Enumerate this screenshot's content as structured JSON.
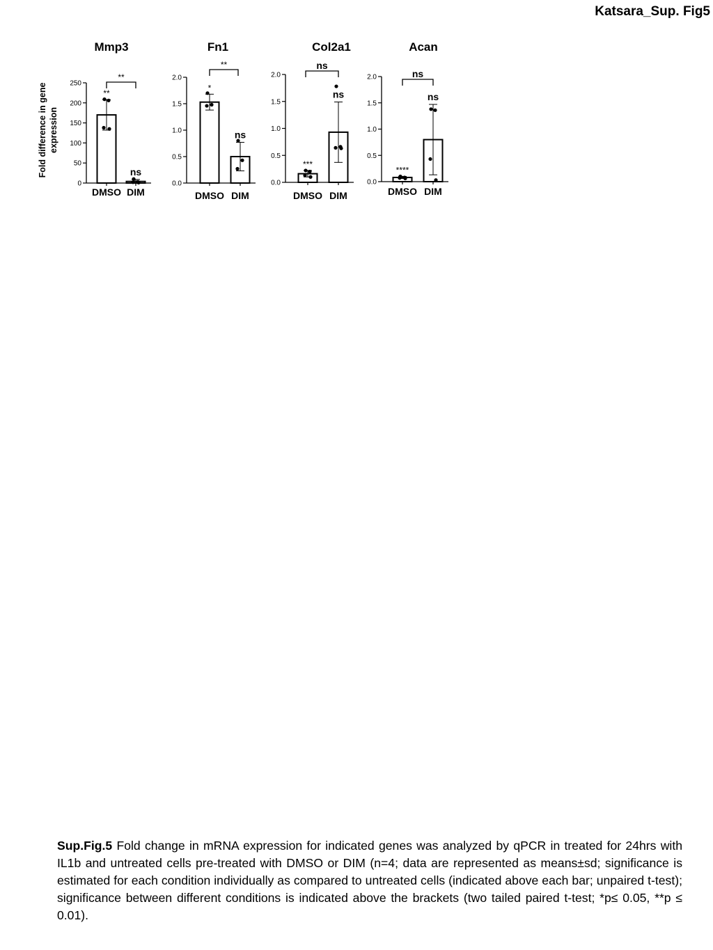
{
  "header": {
    "label": "Katsara_Sup. Fig5"
  },
  "figure": {
    "shared_ylabel_line1": "Fold difference in gene",
    "shared_ylabel_line2": "expression"
  },
  "chart_data": [
    {
      "type": "bar",
      "title": "Mmp3",
      "categories": [
        "DMSO",
        "DIM"
      ],
      "ylim": [
        0,
        250
      ],
      "yticks": [
        "0",
        "50",
        "100",
        "150",
        "200",
        "250"
      ],
      "values": [
        170,
        4
      ],
      "sd": [
        38,
        5
      ],
      "points": [
        [
          209,
          206,
          138,
          135
        ],
        [
          10,
          3,
          2,
          1
        ]
      ],
      "bar_annotations": [
        "**",
        "ns"
      ],
      "bracket_label": "**"
    },
    {
      "type": "bar",
      "title": "Fn1",
      "categories": [
        "DMSO",
        "DIM"
      ],
      "ylim": [
        0,
        2.0
      ],
      "yticks": [
        "0.0",
        "0.5",
        "1.0",
        "1.5",
        "2.0"
      ],
      "values": [
        1.53,
        0.5
      ],
      "sd": [
        0.15,
        0.27
      ],
      "points": [
        [
          1.7,
          1.48,
          1.46
        ],
        [
          0.8,
          0.43,
          0.27
        ]
      ],
      "bar_annotations": [
        "*",
        "ns"
      ],
      "bracket_label": "**"
    },
    {
      "type": "bar",
      "title": "Col2a1",
      "categories": [
        "DMSO",
        "DIM"
      ],
      "ylim": [
        0,
        2.0
      ],
      "yticks": [
        "0.0",
        "0.5",
        "1.0",
        "1.5",
        "2.0"
      ],
      "values": [
        0.16,
        0.93
      ],
      "sd": [
        0.06,
        0.56
      ],
      "points": [
        [
          0.22,
          0.2,
          0.13,
          0.1
        ],
        [
          1.78,
          0.66,
          0.64,
          0.63
        ]
      ],
      "bar_annotations": [
        "***",
        "ns"
      ],
      "bracket_label": "ns"
    },
    {
      "type": "bar",
      "title": "Acan",
      "categories": [
        "DMSO",
        "DIM"
      ],
      "ylim": [
        0,
        2.0
      ],
      "yticks": [
        "0.0",
        "0.5",
        "1.0",
        "1.5",
        "2.0"
      ],
      "values": [
        0.08,
        0.8
      ],
      "sd": [
        0.02,
        0.67
      ],
      "points": [
        [
          0.1,
          0.08,
          0.07,
          0.06
        ],
        [
          1.38,
          1.36,
          0.43,
          0.03
        ]
      ],
      "bar_annotations": [
        "****",
        "ns"
      ],
      "bracket_label": "ns"
    }
  ],
  "caption": {
    "lead": "Sup.Fig.5",
    "text": " Fold change in mRNA expression for indicated genes was analyzed by qPCR in treated for 24hrs with IL1b and untreated cells pre-treated with DMSO or DIM (n=4; data are represented as means±sd; significance is estimated for each condition individually as compared to untreated cells (indicated above each bar; unpaired t-test); significance between different conditions is indicated above the brackets (two tailed paired t-test; *p≤ 0.05, **p ≤ 0.01)."
  }
}
